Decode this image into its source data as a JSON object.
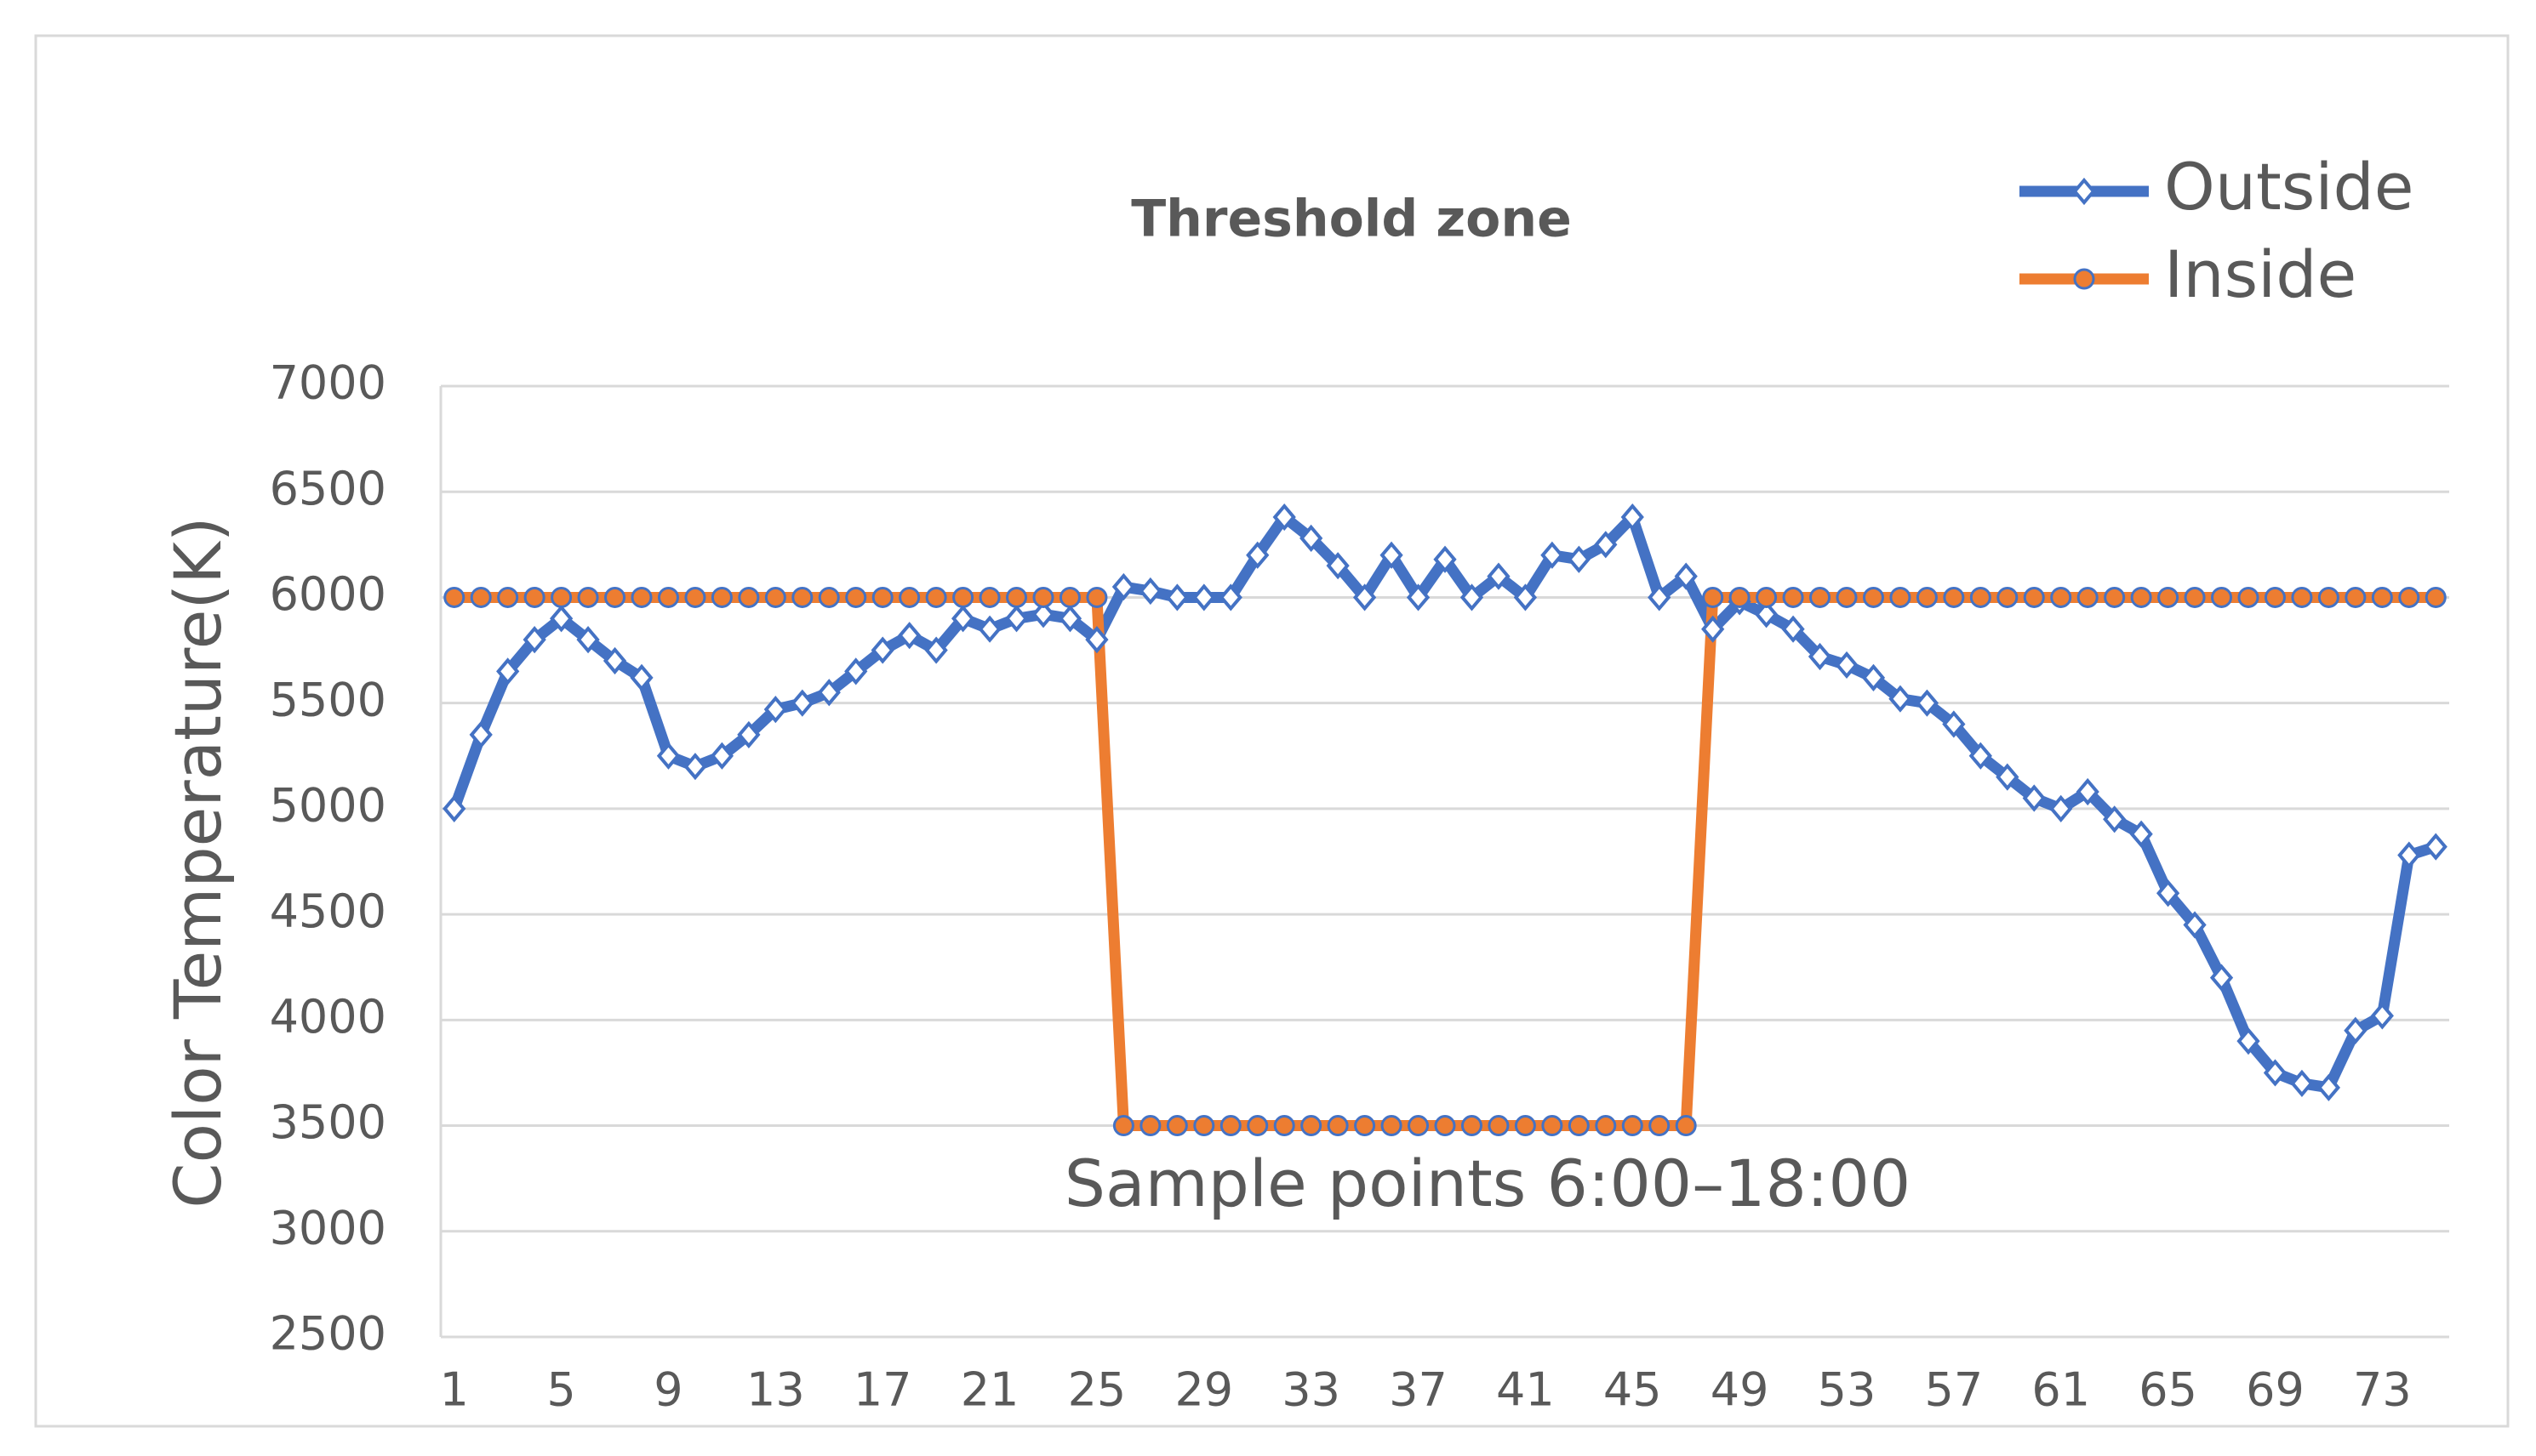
{
  "chart_data": {
    "type": "line",
    "title": "Threshold zone",
    "ylabel": "Color Temperature(K)",
    "annotation": "Sample points 6:00–18:00",
    "categories": [
      1,
      null,
      null,
      null,
      5,
      null,
      null,
      null,
      9,
      null,
      null,
      null,
      13,
      null,
      null,
      null,
      17,
      null,
      null,
      null,
      21,
      null,
      null,
      null,
      25,
      null,
      null,
      null,
      29,
      null,
      null,
      null,
      33,
      null,
      null,
      null,
      37,
      null,
      null,
      null,
      41,
      null,
      null,
      null,
      45,
      null,
      null,
      null,
      49,
      null,
      null,
      null,
      53,
      null,
      null,
      null,
      57,
      null,
      null,
      null,
      61,
      null,
      null,
      null,
      65,
      null,
      null,
      null,
      69,
      null,
      null,
      null,
      73,
      null,
      null
    ],
    "series": [
      {
        "name": "Outside",
        "color": "#4472c4",
        "marker": "diamond",
        "values": [
          5000,
          5350,
          5650,
          5800,
          5900,
          5800,
          5700,
          5620,
          5250,
          5200,
          5250,
          5350,
          5470,
          5500,
          5550,
          5650,
          5750,
          5820,
          5750,
          5900,
          5850,
          5900,
          5920,
          5900,
          5800,
          6050,
          6030,
          6000,
          6000,
          6000,
          6200,
          6380,
          6280,
          6150,
          6000,
          6200,
          6000,
          6180,
          6000,
          6100,
          6000,
          6200,
          6180,
          6250,
          6380,
          6000,
          6100,
          5850,
          5980,
          5920,
          5850,
          5720,
          5680,
          5620,
          5520,
          5500,
          5400,
          5250,
          5150,
          5050,
          5000,
          5080,
          4950,
          4880,
          4600,
          4450,
          4200,
          3900,
          3750,
          3700,
          3680,
          3950,
          4020,
          4780,
          4820
        ]
      },
      {
        "name": "Inside",
        "color": "#ed7d31",
        "marker": "circle",
        "values": [
          6000,
          6000,
          6000,
          6000,
          6000,
          6000,
          6000,
          6000,
          6000,
          6000,
          6000,
          6000,
          6000,
          6000,
          6000,
          6000,
          6000,
          6000,
          6000,
          6000,
          6000,
          6000,
          6000,
          6000,
          6000,
          3500,
          3500,
          3500,
          3500,
          3500,
          3500,
          3500,
          3500,
          3500,
          3500,
          3500,
          3500,
          3500,
          3500,
          3500,
          3500,
          3500,
          3500,
          3500,
          3500,
          3500,
          3500,
          6000,
          6000,
          6000,
          6000,
          6000,
          6000,
          6000,
          6000,
          6000,
          6000,
          6000,
          6000,
          6000,
          6000,
          6000,
          6000,
          6000,
          6000,
          6000,
          6000,
          6000,
          6000,
          6000,
          6000,
          6000,
          6000,
          6000,
          6000
        ]
      }
    ],
    "ylim": [
      2500,
      7000
    ],
    "yticks": [
      2500,
      3000,
      3500,
      4000,
      4500,
      5000,
      5500,
      6000,
      6500,
      7000
    ],
    "grid": true,
    "legend": "top-right"
  }
}
